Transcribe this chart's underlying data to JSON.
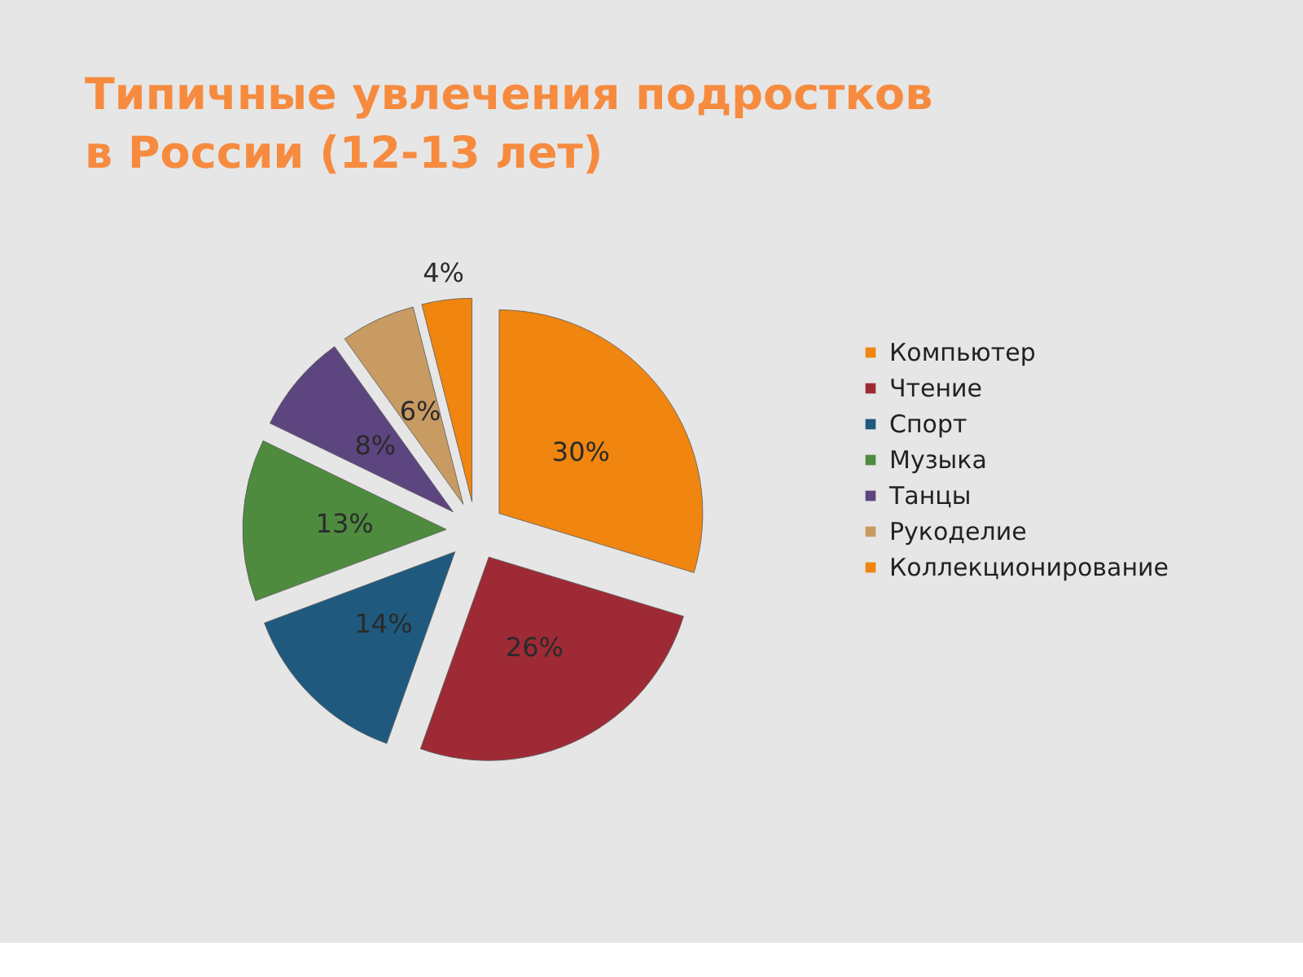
{
  "chart_data": {
    "type": "pie",
    "title": "Типичные увлечения подростков в России (12-13 лет)",
    "categories": [
      "Компьютер",
      "Чтение",
      "Спорт",
      "Музыка",
      "Танцы",
      "Рукоделие",
      "Коллекционирование"
    ],
    "values": [
      30,
      26,
      14,
      13,
      8,
      6,
      4
    ],
    "colors": [
      "#f0850f",
      "#9e2a35",
      "#1f5a7e",
      "#4e8b3f",
      "#5d4580",
      "#c89b63",
      "#f0850f"
    ],
    "value_labels": [
      "30%",
      "26%",
      "14%",
      "13%",
      "8%",
      "6%",
      "4%"
    ],
    "legend": "right"
  }
}
